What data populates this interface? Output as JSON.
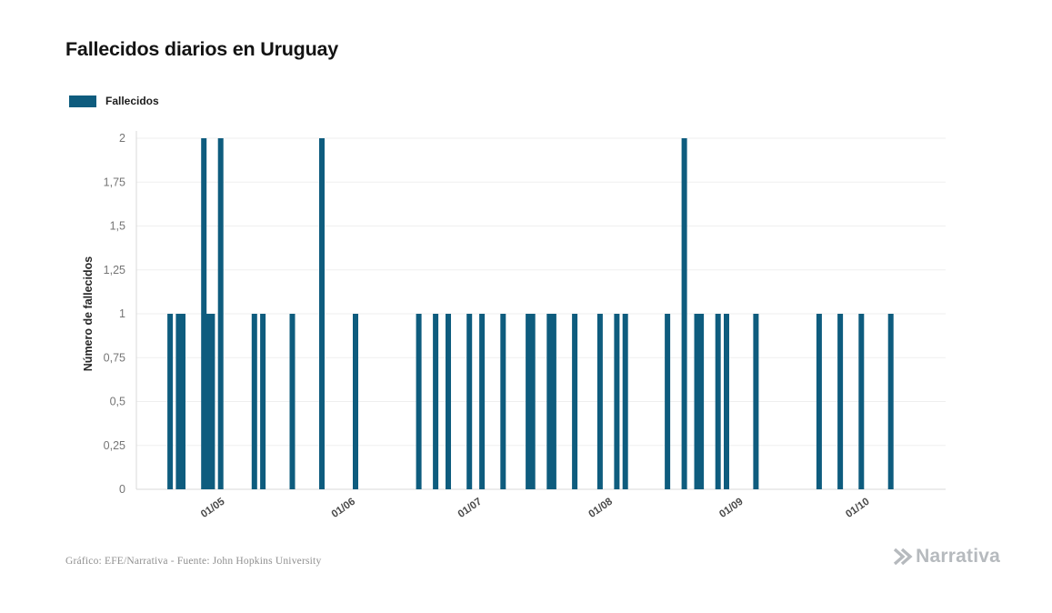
{
  "title": "Fallecidos diarios en Uruguay",
  "legend": {
    "label": "Fallecidos",
    "color": "#0e5c7e"
  },
  "y_axis": {
    "title": "Número de fallecidos",
    "ticks": [
      "0",
      "0,25",
      "0,5",
      "0,75",
      "1",
      "1,25",
      "1,5",
      "1,75",
      "2"
    ],
    "tick_step": 0.25
  },
  "x_axis": {
    "ticks": [
      "01/05",
      "01/06",
      "01/07",
      "01/08",
      "01/09",
      "01/10"
    ]
  },
  "footer": {
    "credit": "Gráfico: EFE/Narrativa - Fuente: John Hopkins University",
    "brand": "Narrativa"
  },
  "chart_data": {
    "type": "bar",
    "title": "Fallecidos diarios en Uruguay",
    "xlabel": "",
    "ylabel": "Número de fallecidos",
    "ylim": [
      0,
      2
    ],
    "grid": "horizontal",
    "legend_position": "top-left",
    "x_range": [
      "11/04",
      "20/10"
    ],
    "x_tick_labels": [
      "01/05",
      "01/06",
      "01/07",
      "01/08",
      "01/09",
      "01/10"
    ],
    "series": [
      {
        "name": "Fallecidos",
        "color": "#0e5c7e",
        "points": [
          {
            "date": "19/04",
            "value": 1
          },
          {
            "date": "21/04",
            "value": 1
          },
          {
            "date": "22/04",
            "value": 1
          },
          {
            "date": "27/04",
            "value": 2
          },
          {
            "date": "28/04",
            "value": 1
          },
          {
            "date": "29/04",
            "value": 1
          },
          {
            "date": "01/05",
            "value": 2
          },
          {
            "date": "09/05",
            "value": 1
          },
          {
            "date": "11/05",
            "value": 1
          },
          {
            "date": "18/05",
            "value": 1
          },
          {
            "date": "25/05",
            "value": 2
          },
          {
            "date": "02/06",
            "value": 1
          },
          {
            "date": "17/06",
            "value": 1
          },
          {
            "date": "21/06",
            "value": 1
          },
          {
            "date": "24/06",
            "value": 1
          },
          {
            "date": "29/06",
            "value": 1
          },
          {
            "date": "02/07",
            "value": 1
          },
          {
            "date": "07/07",
            "value": 1
          },
          {
            "date": "13/07",
            "value": 1
          },
          {
            "date": "14/07",
            "value": 1
          },
          {
            "date": "18/07",
            "value": 1
          },
          {
            "date": "19/07",
            "value": 1
          },
          {
            "date": "24/07",
            "value": 1
          },
          {
            "date": "30/07",
            "value": 1
          },
          {
            "date": "03/08",
            "value": 1
          },
          {
            "date": "05/08",
            "value": 1
          },
          {
            "date": "15/08",
            "value": 1
          },
          {
            "date": "19/08",
            "value": 2
          },
          {
            "date": "22/08",
            "value": 1
          },
          {
            "date": "23/08",
            "value": 1
          },
          {
            "date": "27/08",
            "value": 1
          },
          {
            "date": "29/08",
            "value": 1
          },
          {
            "date": "05/09",
            "value": 1
          },
          {
            "date": "20/09",
            "value": 1
          },
          {
            "date": "25/09",
            "value": 1
          },
          {
            "date": "30/09",
            "value": 1
          },
          {
            "date": "07/10",
            "value": 1
          }
        ]
      }
    ]
  }
}
